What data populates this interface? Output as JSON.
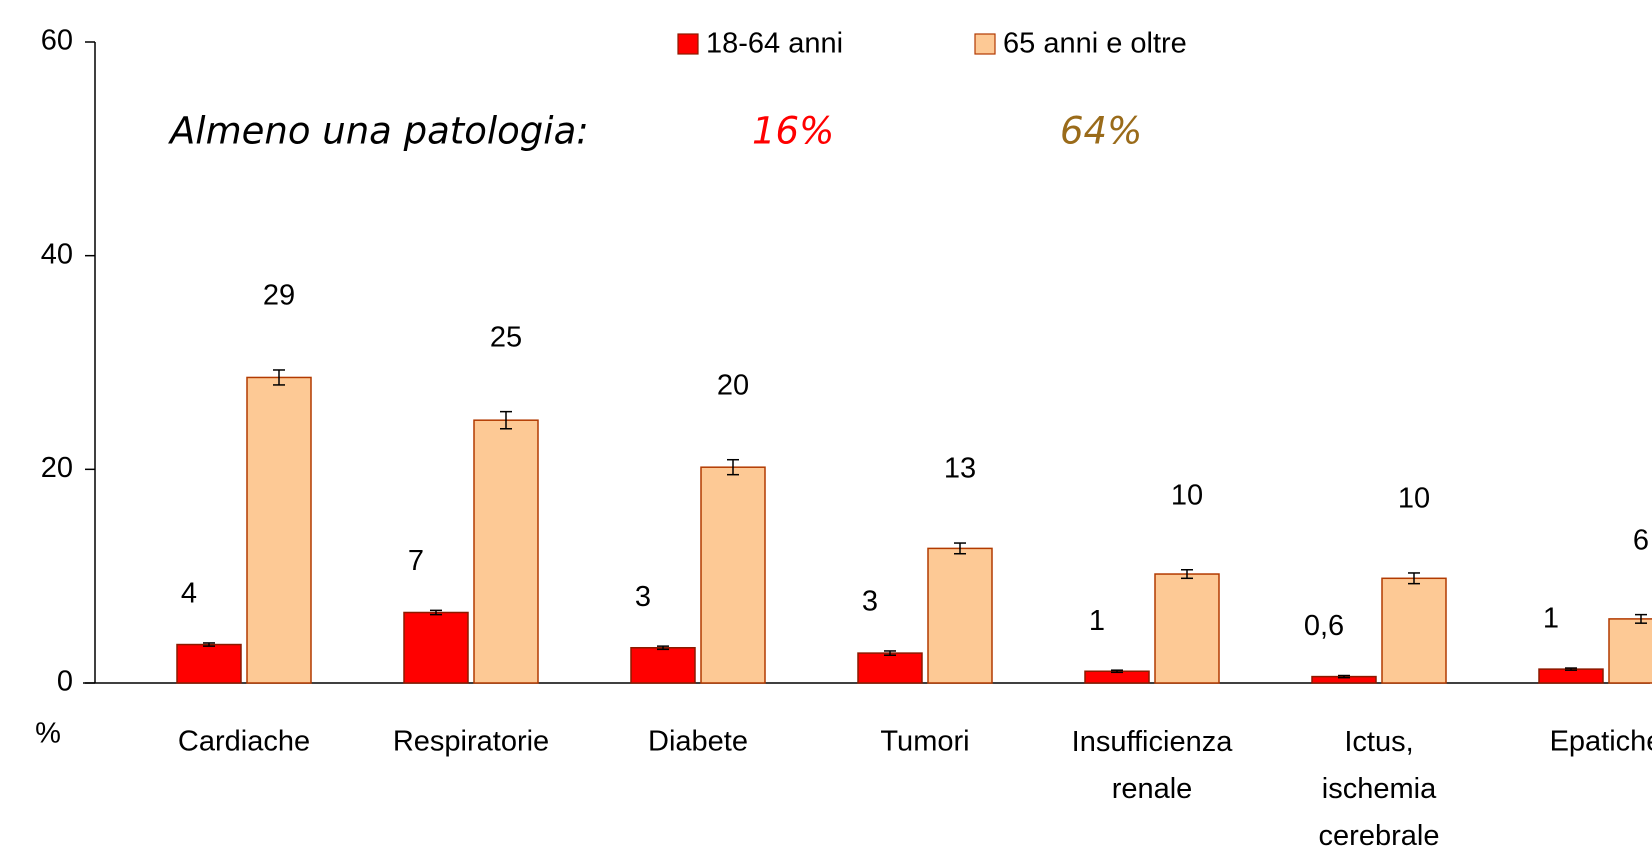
{
  "chart_data": {
    "type": "bar",
    "categories": [
      "Cardiache",
      "Respiratorie",
      "Diabete",
      "Tumori",
      "Insufficienza renale",
      "Ictus, ischemia cerebrale",
      "Epatiche"
    ],
    "series": [
      {
        "name": "18-64 anni",
        "color": "#ff0000",
        "edge": "#8b1a00",
        "values": [
          3.6,
          6.6,
          3.3,
          2.8,
          1.1,
          0.6,
          1.3
        ],
        "errors": [
          0.15,
          0.2,
          0.15,
          0.2,
          0.1,
          0.1,
          0.1
        ],
        "value_labels": [
          "4",
          "7",
          "3",
          "3",
          "1",
          "0,6",
          "1"
        ]
      },
      {
        "name": "65 anni e oltre",
        "color": "#fdc995",
        "edge": "#b23a00",
        "values": [
          28.6,
          24.6,
          20.2,
          12.6,
          10.2,
          9.8,
          6.0
        ],
        "errors": [
          0.7,
          0.8,
          0.7,
          0.5,
          0.4,
          0.5,
          0.4
        ],
        "value_labels": [
          "29",
          "25",
          "20",
          "13",
          "10",
          "10",
          "6"
        ]
      }
    ],
    "ylabel": "%",
    "ylim": [
      0,
      60
    ],
    "yticks": [
      0,
      20,
      40,
      60
    ],
    "annotations": [
      {
        "text": "Almeno una patologia:",
        "color": "#000000"
      },
      {
        "text": "16%",
        "color": "#ff0000"
      },
      {
        "text": "64%",
        "color": "#9a6b1a"
      }
    ],
    "legend": "top"
  }
}
